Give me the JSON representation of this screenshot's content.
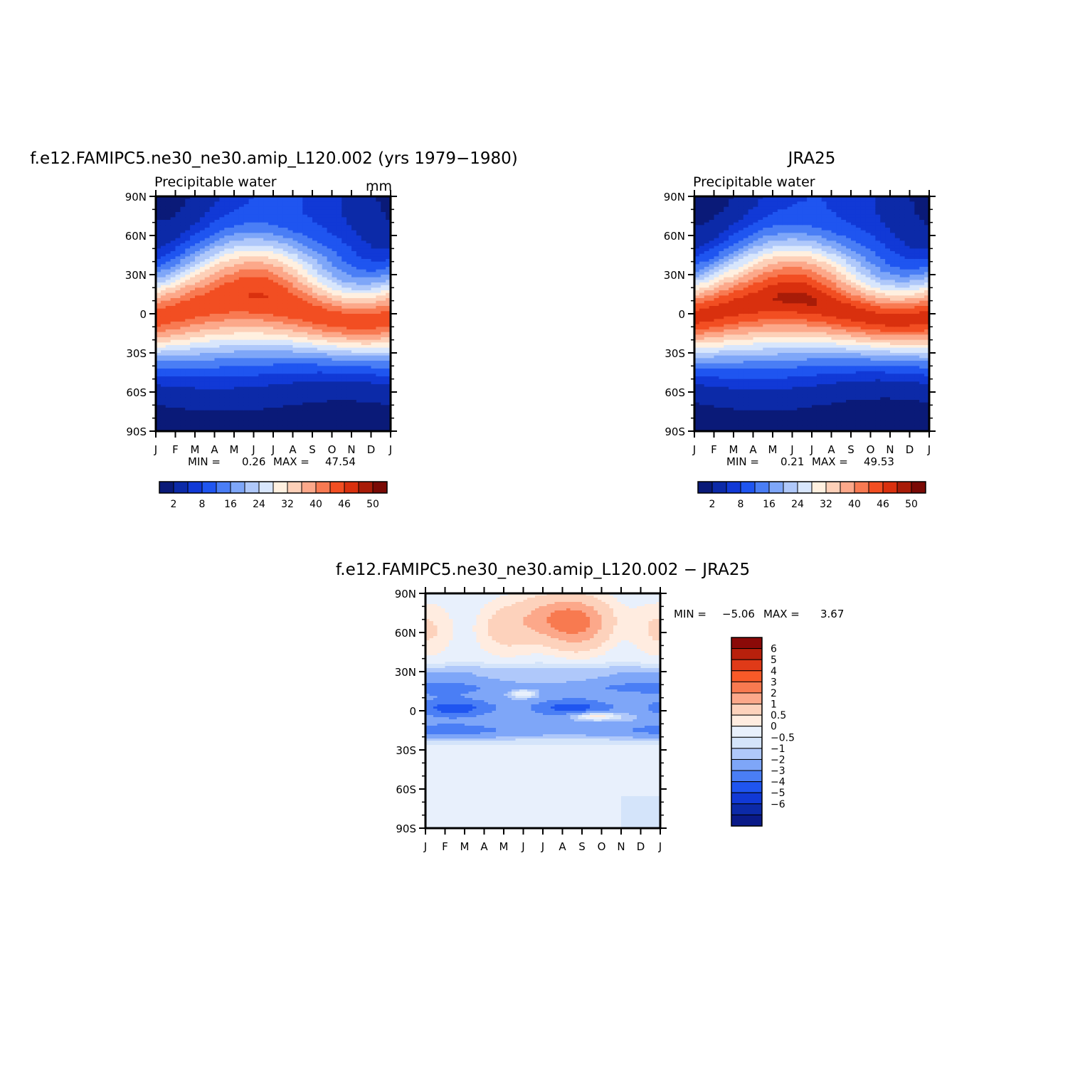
{
  "chart_data": [
    {
      "type": "heatmap",
      "title": "f.e12.FAMIPC5.ne30_ne30.amip_L120.002 (yrs 1979−1980)",
      "subtitle_left": "Precipitable water",
      "subtitle_right": "mm",
      "xlabel": "",
      "ylabel": "",
      "x_ticks": [
        "J",
        "F",
        "M",
        "A",
        "M",
        "J",
        "J",
        "A",
        "S",
        "O",
        "N",
        "D",
        "J"
      ],
      "y_ticks": [
        "90N",
        "60N",
        "30N",
        "0",
        "30S",
        "60S",
        "90S"
      ],
      "xlim": [
        0,
        12
      ],
      "ylim": [
        -90,
        90
      ],
      "min_label": "MIN =",
      "min_value": "0.26",
      "max_label": "MAX =",
      "max_value": "47.54",
      "colorbar_labels": [
        "2",
        "8",
        "16",
        "24",
        "32",
        "40",
        "46",
        "50"
      ],
      "colorbar_colors": [
        "#0a1a78",
        "#0c2aa8",
        "#1139d6",
        "#1f55f0",
        "#4a7ef5",
        "#7ea6f8",
        "#afc8fa",
        "#d8e6fc",
        "#fff0e0",
        "#fdd0b8",
        "#fca88a",
        "#f87a52",
        "#f24e22",
        "#d9300e",
        "#a81c08",
        "#7a0a05"
      ],
      "field": {
        "description": "zonal-mean precipitable water by month and latitude",
        "lat_max_month_sh": 1,
        "lat_max_month_nh": 7,
        "equator_peak": 44.5,
        "polar_values": {
          "north_winter": 2,
          "north_summer": 14,
          "south": 1.5
        }
      }
    },
    {
      "type": "heatmap",
      "title": "JRA25",
      "subtitle_left": "Precipitable water",
      "subtitle_right": "",
      "xlabel": "",
      "ylabel": "",
      "x_ticks": [
        "J",
        "F",
        "M",
        "A",
        "M",
        "J",
        "J",
        "A",
        "S",
        "O",
        "N",
        "D",
        "J"
      ],
      "y_ticks": [
        "90N",
        "60N",
        "30N",
        "0",
        "30S",
        "60S",
        "90S"
      ],
      "xlim": [
        0,
        12
      ],
      "ylim": [
        -90,
        90
      ],
      "min_label": "MIN =",
      "min_value": "0.21",
      "max_label": "MAX =",
      "max_value": "49.53",
      "colorbar_labels": [
        "2",
        "8",
        "16",
        "24",
        "32",
        "40",
        "46",
        "50"
      ],
      "colorbar_colors": [
        "#0a1a78",
        "#0c2aa8",
        "#1139d6",
        "#1f55f0",
        "#4a7ef5",
        "#7ea6f8",
        "#afc8fa",
        "#d8e6fc",
        "#fff0e0",
        "#fdd0b8",
        "#fca88a",
        "#f87a52",
        "#f24e22",
        "#d9300e",
        "#a81c08",
        "#7a0a05"
      ],
      "field": {
        "description": "zonal-mean precipitable water by month and latitude",
        "equator_peak": 47.0,
        "polar_values": {
          "north_winter": 1.5,
          "north_summer": 13,
          "south": 1.2
        }
      }
    },
    {
      "type": "heatmap",
      "title": "f.e12.FAMIPC5.ne30_ne30.amip_L120.002 − JRA25",
      "x_ticks": [
        "J",
        "F",
        "M",
        "A",
        "M",
        "J",
        "J",
        "A",
        "S",
        "O",
        "N",
        "D",
        "J"
      ],
      "y_ticks": [
        "90N",
        "60N",
        "30N",
        "0",
        "30S",
        "60S",
        "90S"
      ],
      "xlim": [
        0,
        12
      ],
      "ylim": [
        -90,
        90
      ],
      "min_label": "MIN =",
      "min_value": "−5.06",
      "max_label": "MAX =",
      "max_value": "3.67",
      "colorbar_labels": [
        "6",
        "5",
        "4",
        "3",
        "2",
        "1",
        "0.5",
        "0",
        "−0.5",
        "−1",
        "−2",
        "−3",
        "−4",
        "−5",
        "−6"
      ],
      "colorbar_colors": [
        "#8b0a08",
        "#b8200c",
        "#e03a18",
        "#f85a28",
        "#f87a50",
        "#fca88a",
        "#fdd2bc",
        "#ffece0",
        "#e8f0fc",
        "#d4e4fa",
        "#afc8fa",
        "#7ea6f8",
        "#4a7ef5",
        "#1f55f0",
        "#1139d6",
        "#0c2aa8",
        "#0a1a88"
      ]
    }
  ]
}
